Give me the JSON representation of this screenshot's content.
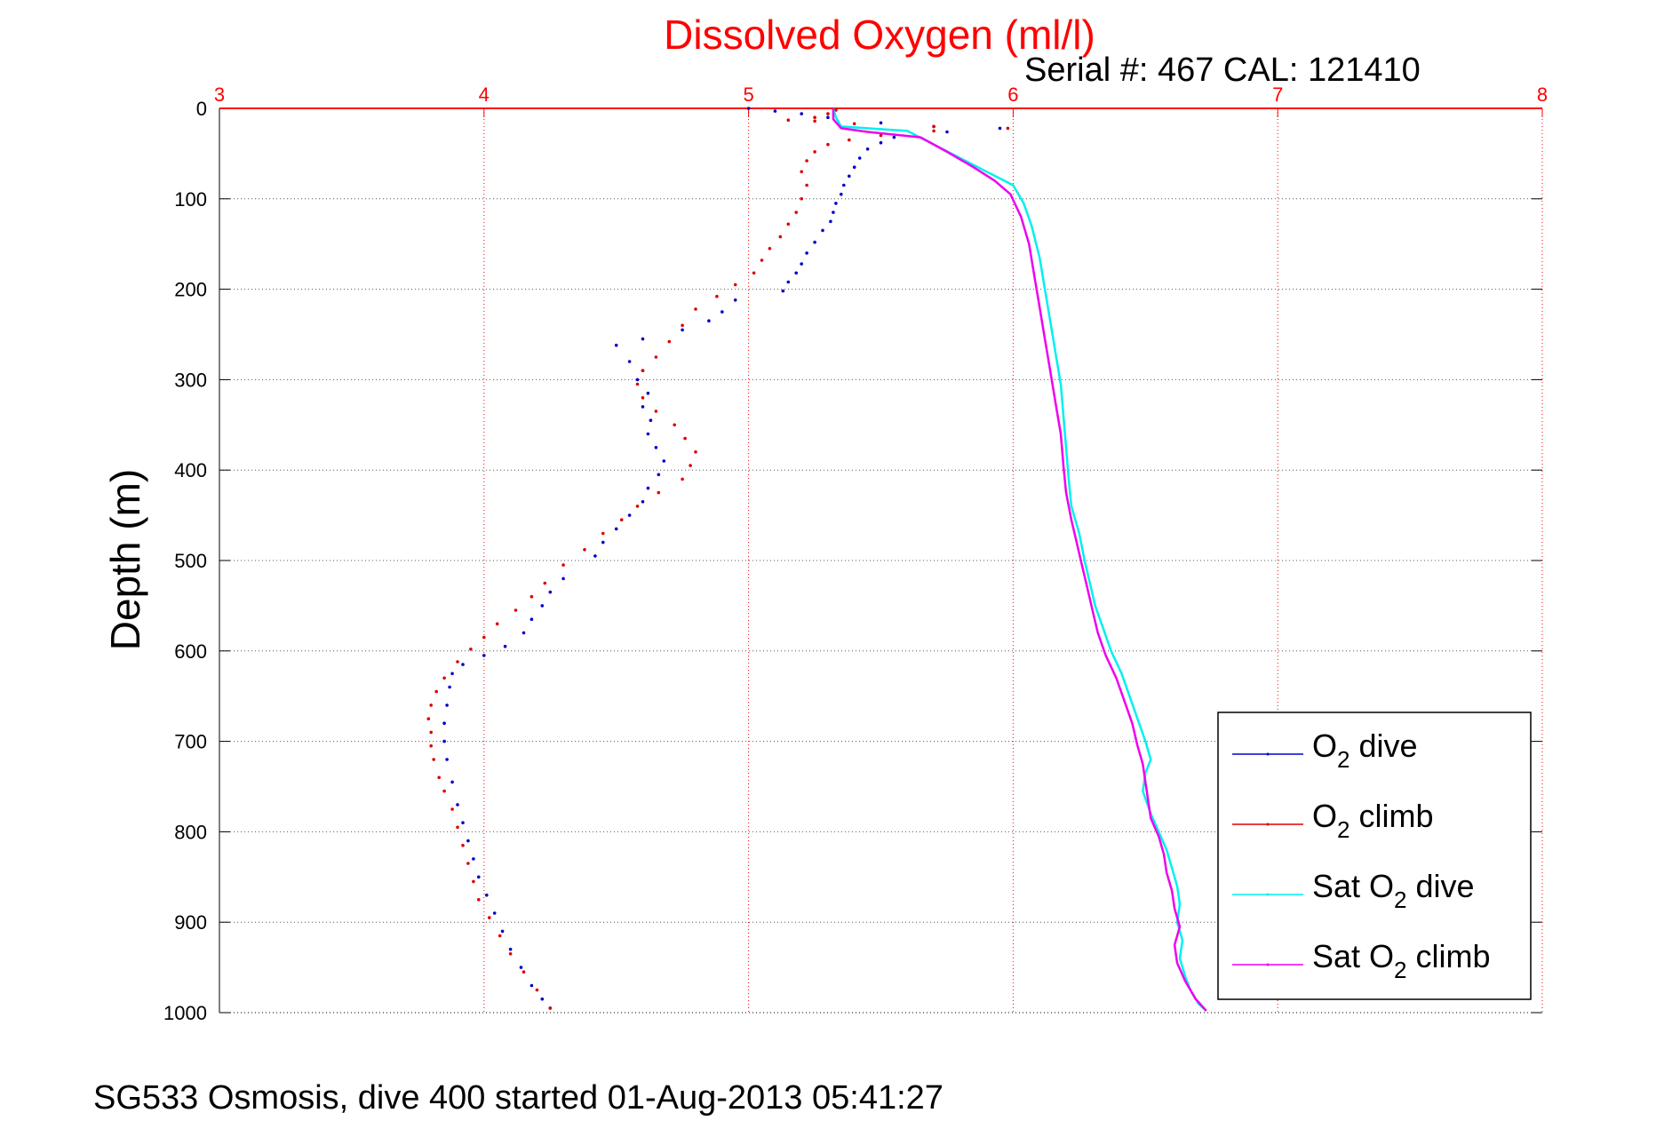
{
  "chart_data": {
    "type": "scatter",
    "title": "Dissolved Oxygen (ml/l)",
    "subtitle": "Serial #: 467  CAL: 121410",
    "ylabel": "Depth (m)",
    "xlim": [
      3,
      8
    ],
    "ylim": [
      0,
      1000
    ],
    "y_reversed": true,
    "x_axis_position": "top",
    "xticks": [
      "3",
      "4",
      "5",
      "6",
      "7",
      "8"
    ],
    "yticks": [
      "0",
      "100",
      "200",
      "300",
      "400",
      "500",
      "600",
      "700",
      "800",
      "900",
      "1000"
    ],
    "grid": true,
    "legend_position": "bottom-right",
    "colors": {
      "title": "#ff0000",
      "xaxis": "#ff0000",
      "o2_dive": "#0000cc",
      "o2_climb": "#dd0000",
      "sat_dive": "#00f0f0",
      "sat_climb": "#ee00ee"
    },
    "series": [
      {
        "name": "O2 dive",
        "legend_main": "O",
        "legend_sub": "2",
        "legend_rest": " dive",
        "color": "#0000cc",
        "style": "dots",
        "points": [
          [
            5.0,
            0
          ],
          [
            5.1,
            3
          ],
          [
            5.2,
            6
          ],
          [
            5.3,
            10
          ],
          [
            5.5,
            16
          ],
          [
            5.7,
            20
          ],
          [
            5.95,
            22
          ],
          [
            5.75,
            26
          ],
          [
            5.55,
            32
          ],
          [
            5.5,
            38
          ],
          [
            5.45,
            45
          ],
          [
            5.42,
            55
          ],
          [
            5.4,
            65
          ],
          [
            5.38,
            75
          ],
          [
            5.36,
            85
          ],
          [
            5.35,
            95
          ],
          [
            5.33,
            105
          ],
          [
            5.32,
            115
          ],
          [
            5.31,
            125
          ],
          [
            5.28,
            135
          ],
          [
            5.25,
            148
          ],
          [
            5.22,
            160
          ],
          [
            5.2,
            172
          ],
          [
            5.18,
            182
          ],
          [
            5.15,
            192
          ],
          [
            5.13,
            202
          ],
          [
            4.95,
            212
          ],
          [
            4.9,
            225
          ],
          [
            4.85,
            235
          ],
          [
            4.75,
            245
          ],
          [
            4.6,
            255
          ],
          [
            4.5,
            262
          ],
          [
            4.55,
            280
          ],
          [
            4.6,
            290
          ],
          [
            4.58,
            300
          ],
          [
            4.62,
            315
          ],
          [
            4.6,
            330
          ],
          [
            4.63,
            345
          ],
          [
            4.62,
            360
          ],
          [
            4.65,
            375
          ],
          [
            4.68,
            390
          ],
          [
            4.66,
            405
          ],
          [
            4.62,
            420
          ],
          [
            4.6,
            435
          ],
          [
            4.55,
            450
          ],
          [
            4.5,
            465
          ],
          [
            4.45,
            480
          ],
          [
            4.42,
            495
          ],
          [
            4.3,
            520
          ],
          [
            4.25,
            535
          ],
          [
            4.22,
            550
          ],
          [
            4.18,
            565
          ],
          [
            4.15,
            580
          ],
          [
            4.08,
            595
          ],
          [
            4.0,
            605
          ],
          [
            3.92,
            615
          ],
          [
            3.88,
            625
          ],
          [
            3.87,
            640
          ],
          [
            3.86,
            660
          ],
          [
            3.85,
            680
          ],
          [
            3.85,
            700
          ],
          [
            3.86,
            720
          ],
          [
            3.88,
            745
          ],
          [
            3.9,
            770
          ],
          [
            3.92,
            790
          ],
          [
            3.94,
            810
          ],
          [
            3.96,
            830
          ],
          [
            3.98,
            850
          ],
          [
            4.01,
            870
          ],
          [
            4.04,
            890
          ],
          [
            4.07,
            910
          ],
          [
            4.1,
            930
          ],
          [
            4.14,
            950
          ],
          [
            4.18,
            970
          ],
          [
            4.22,
            985
          ],
          [
            4.25,
            995
          ]
        ]
      },
      {
        "name": "O2 climb",
        "legend_main": "O",
        "legend_sub": "2",
        "legend_rest": " climb",
        "color": "#dd0000",
        "style": "dots",
        "points": [
          [
            4.25,
            995
          ],
          [
            4.2,
            975
          ],
          [
            4.15,
            955
          ],
          [
            4.1,
            935
          ],
          [
            4.06,
            915
          ],
          [
            4.02,
            895
          ],
          [
            3.98,
            875
          ],
          [
            3.96,
            855
          ],
          [
            3.94,
            835
          ],
          [
            3.92,
            815
          ],
          [
            3.9,
            795
          ],
          [
            3.88,
            775
          ],
          [
            3.85,
            755
          ],
          [
            3.83,
            740
          ],
          [
            3.81,
            720
          ],
          [
            3.8,
            705
          ],
          [
            3.8,
            690
          ],
          [
            3.79,
            675
          ],
          [
            3.8,
            660
          ],
          [
            3.82,
            645
          ],
          [
            3.85,
            630
          ],
          [
            3.9,
            612
          ],
          [
            3.95,
            598
          ],
          [
            4.0,
            585
          ],
          [
            4.05,
            570
          ],
          [
            4.12,
            555
          ],
          [
            4.18,
            540
          ],
          [
            4.23,
            525
          ],
          [
            4.3,
            505
          ],
          [
            4.38,
            488
          ],
          [
            4.45,
            470
          ],
          [
            4.52,
            455
          ],
          [
            4.58,
            440
          ],
          [
            4.66,
            425
          ],
          [
            4.75,
            410
          ],
          [
            4.78,
            395
          ],
          [
            4.8,
            380
          ],
          [
            4.76,
            365
          ],
          [
            4.72,
            350
          ],
          [
            4.65,
            335
          ],
          [
            4.6,
            320
          ],
          [
            4.58,
            305
          ],
          [
            4.6,
            290
          ],
          [
            4.65,
            275
          ],
          [
            4.7,
            258
          ],
          [
            4.75,
            240
          ],
          [
            4.8,
            222
          ],
          [
            4.88,
            208
          ],
          [
            4.95,
            195
          ],
          [
            5.02,
            182
          ],
          [
            5.05,
            168
          ],
          [
            5.08,
            155
          ],
          [
            5.12,
            142
          ],
          [
            5.15,
            128
          ],
          [
            5.18,
            115
          ],
          [
            5.2,
            100
          ],
          [
            5.22,
            85
          ],
          [
            5.2,
            70
          ],
          [
            5.22,
            58
          ],
          [
            5.25,
            48
          ],
          [
            5.3,
            40
          ],
          [
            5.38,
            35
          ],
          [
            5.5,
            30
          ],
          [
            5.7,
            25
          ],
          [
            5.98,
            22
          ],
          [
            5.7,
            20
          ],
          [
            5.4,
            17
          ],
          [
            5.25,
            14
          ],
          [
            5.15,
            13
          ],
          [
            5.25,
            10
          ],
          [
            5.3,
            6
          ],
          [
            5.33,
            2
          ]
        ]
      },
      {
        "name": "Sat O2 dive",
        "legend_main": "Sat O",
        "legend_sub": "2",
        "legend_rest": " dive",
        "color": "#00f0f0",
        "style": "line",
        "points": [
          [
            5.32,
            0
          ],
          [
            5.33,
            10
          ],
          [
            5.35,
            20
          ],
          [
            5.6,
            25
          ],
          [
            5.7,
            40
          ],
          [
            5.8,
            55
          ],
          [
            5.9,
            70
          ],
          [
            6.0,
            85
          ],
          [
            6.04,
            105
          ],
          [
            6.07,
            130
          ],
          [
            6.1,
            165
          ],
          [
            6.12,
            200
          ],
          [
            6.14,
            235
          ],
          [
            6.16,
            270
          ],
          [
            6.18,
            305
          ],
          [
            6.19,
            340
          ],
          [
            6.2,
            375
          ],
          [
            6.21,
            410
          ],
          [
            6.22,
            440
          ],
          [
            6.25,
            470
          ],
          [
            6.27,
            500
          ],
          [
            6.29,
            525
          ],
          [
            6.31,
            550
          ],
          [
            6.34,
            575
          ],
          [
            6.37,
            600
          ],
          [
            6.41,
            625
          ],
          [
            6.44,
            650
          ],
          [
            6.47,
            675
          ],
          [
            6.5,
            700
          ],
          [
            6.52,
            720
          ],
          [
            6.5,
            735
          ],
          [
            6.49,
            755
          ],
          [
            6.52,
            780
          ],
          [
            6.55,
            800
          ],
          [
            6.58,
            820
          ],
          [
            6.6,
            840
          ],
          [
            6.62,
            860
          ],
          [
            6.63,
            880
          ],
          [
            6.62,
            900
          ],
          [
            6.64,
            920
          ],
          [
            6.63,
            940
          ],
          [
            6.65,
            960
          ],
          [
            6.67,
            975
          ],
          [
            6.7,
            990
          ],
          [
            6.73,
            998
          ]
        ]
      },
      {
        "name": "Sat O2 climb",
        "legend_main": "Sat O",
        "legend_sub": "2",
        "legend_rest": " climb",
        "color": "#ee00ee",
        "style": "line",
        "points": [
          [
            6.73,
            998
          ],
          [
            6.69,
            985
          ],
          [
            6.65,
            965
          ],
          [
            6.62,
            945
          ],
          [
            6.61,
            925
          ],
          [
            6.63,
            905
          ],
          [
            6.61,
            885
          ],
          [
            6.6,
            865
          ],
          [
            6.58,
            845
          ],
          [
            6.57,
            825
          ],
          [
            6.55,
            805
          ],
          [
            6.52,
            785
          ],
          [
            6.51,
            765
          ],
          [
            6.5,
            745
          ],
          [
            6.49,
            725
          ],
          [
            6.47,
            705
          ],
          [
            6.45,
            680
          ],
          [
            6.42,
            655
          ],
          [
            6.39,
            630
          ],
          [
            6.35,
            605
          ],
          [
            6.32,
            580
          ],
          [
            6.3,
            555
          ],
          [
            6.28,
            530
          ],
          [
            6.26,
            505
          ],
          [
            6.24,
            480
          ],
          [
            6.22,
            455
          ],
          [
            6.2,
            425
          ],
          [
            6.19,
            395
          ],
          [
            6.18,
            360
          ],
          [
            6.16,
            325
          ],
          [
            6.14,
            290
          ],
          [
            6.12,
            255
          ],
          [
            6.1,
            220
          ],
          [
            6.08,
            185
          ],
          [
            6.06,
            150
          ],
          [
            6.03,
            120
          ],
          [
            5.99,
            95
          ],
          [
            5.93,
            80
          ],
          [
            5.85,
            65
          ],
          [
            5.75,
            48
          ],
          [
            5.65,
            32
          ],
          [
            5.45,
            26
          ],
          [
            5.35,
            22
          ],
          [
            5.32,
            12
          ],
          [
            5.32,
            0
          ]
        ]
      }
    ]
  },
  "caption": "SG533 Osmosis, dive 400 started 01-Aug-2013 05:41:27"
}
